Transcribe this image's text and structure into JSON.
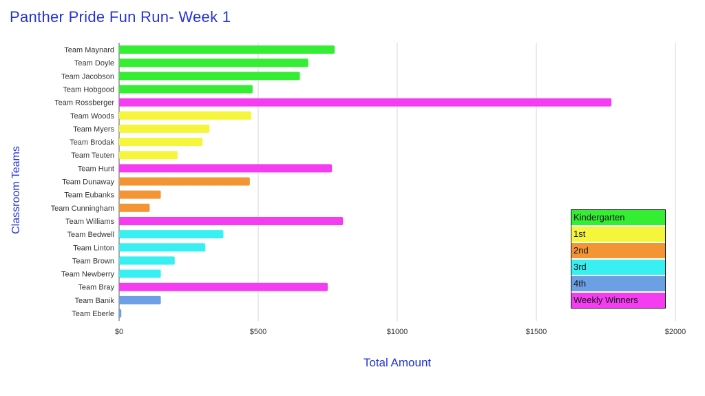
{
  "chart_data": {
    "type": "bar",
    "orientation": "horizontal",
    "title": "Panther Pride Fun Run- Week 1",
    "xlabel": "Total Amount",
    "ylabel": "Classroom Teams",
    "xlim": [
      0,
      2000
    ],
    "xticks": [
      "$0",
      "$500",
      "$1000",
      "$1500",
      "$2000"
    ],
    "grid": "vertical",
    "legend_position": "right",
    "categories": [
      "Team Maynard",
      "Team Doyle",
      "Team Jacobson",
      "Team Hobgood",
      "Team Rossberger",
      "Team Woods",
      "Team Myers",
      "Team Brodak",
      "Team Teuten",
      "Team Hunt",
      "Team Dunaway",
      "Team Eubanks",
      "Team Cunningham",
      "Team Williams",
      "Team Bedwell",
      "Team Linton",
      "Team Brown",
      "Team Newberry",
      "Team Bray",
      "Team Banik",
      "Team Eberle"
    ],
    "values": [
      775,
      680,
      650,
      480,
      1770,
      475,
      325,
      300,
      210,
      765,
      470,
      150,
      110,
      805,
      375,
      310,
      200,
      150,
      750,
      150,
      8
    ],
    "groups": [
      "Kindergarten",
      "Kindergarten",
      "Kindergarten",
      "Kindergarten",
      "Weekly Winners",
      "1st",
      "1st",
      "1st",
      "1st",
      "Weekly Winners",
      "2nd",
      "2nd",
      "2nd",
      "Weekly Winners",
      "3rd",
      "3rd",
      "3rd",
      "3rd",
      "Weekly Winners",
      "4th",
      "4th"
    ],
    "legend": [
      {
        "label": "Kindergarten",
        "color": "#33ee33"
      },
      {
        "label": "1st",
        "color": "#f5f53c"
      },
      {
        "label": "2nd",
        "color": "#f39535"
      },
      {
        "label": "3rd",
        "color": "#38f0f2"
      },
      {
        "label": "4th",
        "color": "#6d9fe4"
      },
      {
        "label": "Weekly Winners",
        "color": "#f43cf0"
      }
    ]
  }
}
